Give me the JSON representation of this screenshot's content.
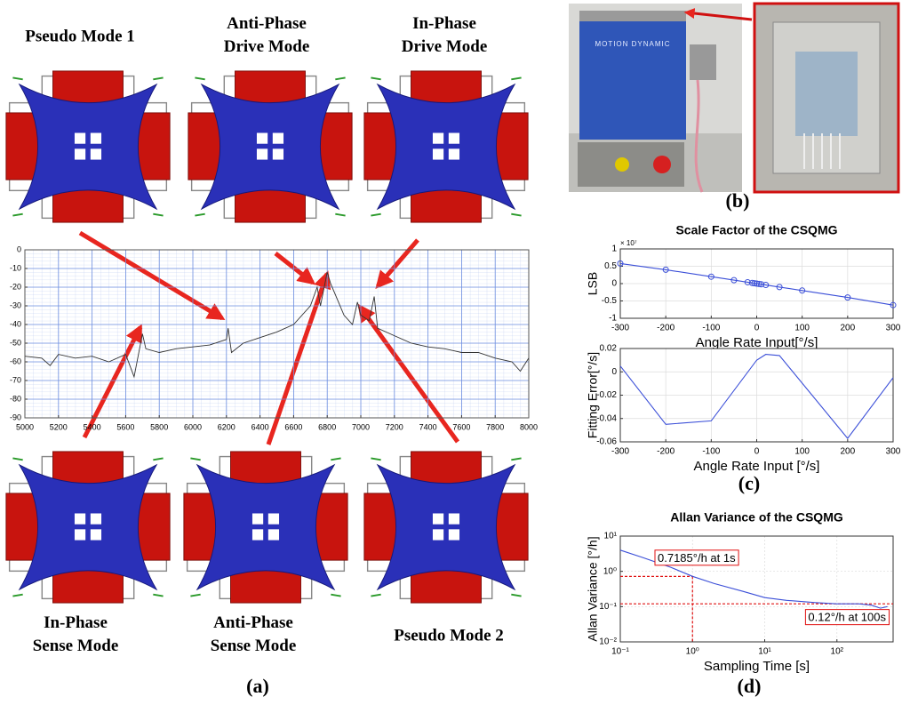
{
  "modes": {
    "top": [
      "Pseudo Mode 1",
      "Anti-Phase Drive Mode",
      "In-Phase Drive Mode"
    ],
    "bottom": [
      "In-Phase Sense Mode",
      "Anti-Phase Sense Mode",
      "Pseudo Mode 2"
    ]
  },
  "photo": {
    "brand": "Motion Dynamic"
  },
  "panels": [
    "(a)",
    "(b)",
    "(c)",
    "(d)"
  ],
  "chart_data": [
    {
      "type": "line",
      "x": [
        5000,
        5100,
        5150,
        5200,
        5300,
        5400,
        5500,
        5600,
        5650,
        5700,
        5720,
        5800,
        5900,
        6000,
        6100,
        6200,
        6210,
        6230,
        6300,
        6400,
        6500,
        6600,
        6700,
        6740,
        6760,
        6800,
        6820,
        6900,
        6950,
        6980,
        7000,
        7050,
        7080,
        7100,
        7200,
        7300,
        7400,
        7500,
        7600,
        7700,
        7800,
        7900,
        7950,
        8000
      ],
      "series": [
        {
          "color": "#333333",
          "values": [
            -57,
            -58,
            -62,
            -56,
            -58,
            -57,
            -60,
            -56,
            -68,
            -45,
            -53,
            -55,
            -53,
            -52,
            -51,
            -48,
            -42,
            -55,
            -50,
            -47,
            -44,
            -40,
            -30,
            -20,
            -30,
            -12,
            -18,
            -35,
            -40,
            -28,
            -35,
            -38,
            -25,
            -42,
            -46,
            -50,
            -52,
            -53,
            -55,
            -55,
            -58,
            -60,
            -65,
            -58
          ]
        }
      ],
      "xlim": [
        5000,
        8000
      ],
      "xticks": [
        5000,
        5200,
        5400,
        5600,
        5800,
        6000,
        6200,
        6400,
        6600,
        6800,
        7000,
        7200,
        7400,
        7600,
        7800,
        8000
      ],
      "ylim": [
        -90,
        0
      ],
      "yticks": [
        -90,
        -80,
        -70,
        -60,
        -50,
        -40,
        -30,
        -20,
        -10,
        0
      ],
      "grid": true
    },
    {
      "type": "line",
      "title": "Scale Factor of the CSQMG",
      "x_label": "Angle Rate Input[°/s]",
      "y_label": "LSB",
      "y_multiplier_label": "× 10⁷",
      "x": [
        -300,
        -200,
        -100,
        -50,
        -20,
        -10,
        -5,
        0,
        5,
        10,
        20,
        50,
        100,
        200,
        300
      ],
      "series": [
        {
          "color": "#3b4fd8",
          "marker": "circle",
          "values": [
            0.58,
            0.4,
            0.2,
            0.1,
            0.04,
            0.02,
            0.01,
            0,
            -0.01,
            -0.02,
            -0.04,
            -0.1,
            -0.2,
            -0.4,
            -0.62
          ]
        }
      ],
      "xlim": [
        -300,
        300
      ],
      "xticks": [
        -300,
        -200,
        -100,
        0,
        100,
        200,
        300
      ],
      "ylim": [
        -1,
        1
      ],
      "yticks": [
        -1,
        -0.5,
        0,
        0.5,
        1
      ],
      "grid": true
    },
    {
      "type": "line",
      "x_label": "Angle Rate Input [°/s]",
      "y_label": "Fitting Error[°/s]",
      "x": [
        -300,
        -200,
        -100,
        0,
        20,
        50,
        200,
        300
      ],
      "series": [
        {
          "color": "#3b4fd8",
          "values": [
            0.005,
            -0.045,
            -0.042,
            0.01,
            0.015,
            0.014,
            -0.057,
            -0.005
          ]
        }
      ],
      "xlim": [
        -300,
        300
      ],
      "xticks": [
        -300,
        -200,
        -100,
        0,
        100,
        200,
        300
      ],
      "ylim": [
        -0.06,
        0.02
      ],
      "yticks": [
        -0.06,
        -0.04,
        -0.02,
        0,
        0.02
      ],
      "grid": true
    },
    {
      "type": "line",
      "title": "Allan Variance of the CSQMG",
      "x_label": "Sampling Time [s]",
      "y_label": "Allan Variance [°/h]",
      "log_x": true,
      "log_y": true,
      "x": [
        0.1,
        0.2,
        0.5,
        1,
        2,
        5,
        10,
        20,
        50,
        100,
        200,
        300,
        400,
        500
      ],
      "series": [
        {
          "color": "#3b4fd8",
          "values": [
            4,
            2.5,
            1.3,
            0.72,
            0.45,
            0.27,
            0.18,
            0.15,
            0.13,
            0.12,
            0.12,
            0.11,
            0.09,
            0.1
          ]
        }
      ],
      "xlim": [
        0.1,
        600
      ],
      "xticks": [
        {
          "value": 0.1,
          "label": "10⁻¹"
        },
        {
          "value": 1,
          "label": "10⁰"
        },
        {
          "value": 10,
          "label": "10¹"
        },
        {
          "value": 100,
          "label": "10²"
        }
      ],
      "ylim": [
        0.01,
        10
      ],
      "yticks": [
        {
          "value": 0.01,
          "label": "10⁻²"
        },
        {
          "value": 0.1,
          "label": "10⁻¹"
        },
        {
          "value": 1,
          "label": "10⁰"
        },
        {
          "value": 10,
          "label": "10¹"
        }
      ],
      "grid": true,
      "markers": [
        {
          "x": 1,
          "y": 0.7185,
          "label": "0.7185°/h at 1s"
        },
        {
          "x": 100,
          "y": 0.12,
          "label": "0.12°/h at 100s"
        }
      ]
    }
  ]
}
